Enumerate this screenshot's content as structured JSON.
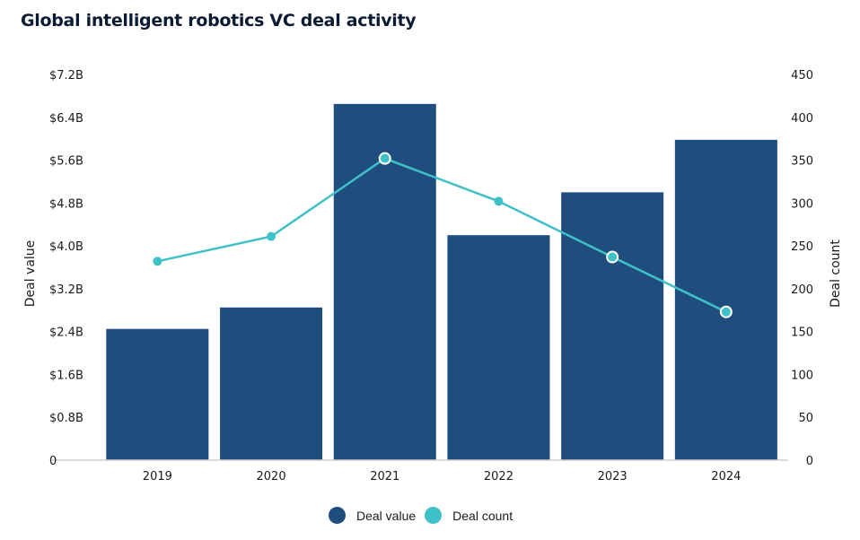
{
  "chart_data": {
    "type": "bar",
    "title": "Global intelligent robotics VC deal activity",
    "categories": [
      "2019",
      "2020",
      "2021",
      "2022",
      "2023",
      "2024"
    ],
    "series": [
      {
        "name": "Deal value",
        "type": "bar",
        "axis": "left",
        "unit": "$B",
        "color": "#1f4e7e",
        "values": [
          2.45,
          2.85,
          6.65,
          4.2,
          5.0,
          5.98
        ]
      },
      {
        "name": "Deal count",
        "type": "line",
        "axis": "right",
        "color": "#3fc1c9",
        "values": [
          232,
          261,
          352,
          302,
          237,
          173
        ]
      }
    ],
    "y_left": {
      "label": "Deal value",
      "lim": [
        0,
        7.2
      ],
      "ticks": [
        "0",
        "$0.8B",
        "$1.6B",
        "$2.4B",
        "$3.2B",
        "$4.0B",
        "$4.8B",
        "$5.6B",
        "$6.4B",
        "$7.2B"
      ],
      "tick_values": [
        0,
        0.8,
        1.6,
        2.4,
        3.2,
        4.0,
        4.8,
        5.6,
        6.4,
        7.2
      ]
    },
    "y_right": {
      "label": "Deal count",
      "lim": [
        0,
        450
      ],
      "ticks": [
        "0",
        "50",
        "100",
        "150",
        "200",
        "250",
        "300",
        "350",
        "400",
        "450"
      ],
      "tick_values": [
        0,
        50,
        100,
        150,
        200,
        250,
        300,
        350,
        400,
        450
      ]
    },
    "xlabel": "",
    "grid": false,
    "legend_position": "bottom-center",
    "highlighted_points": [
      2,
      4,
      5
    ]
  }
}
